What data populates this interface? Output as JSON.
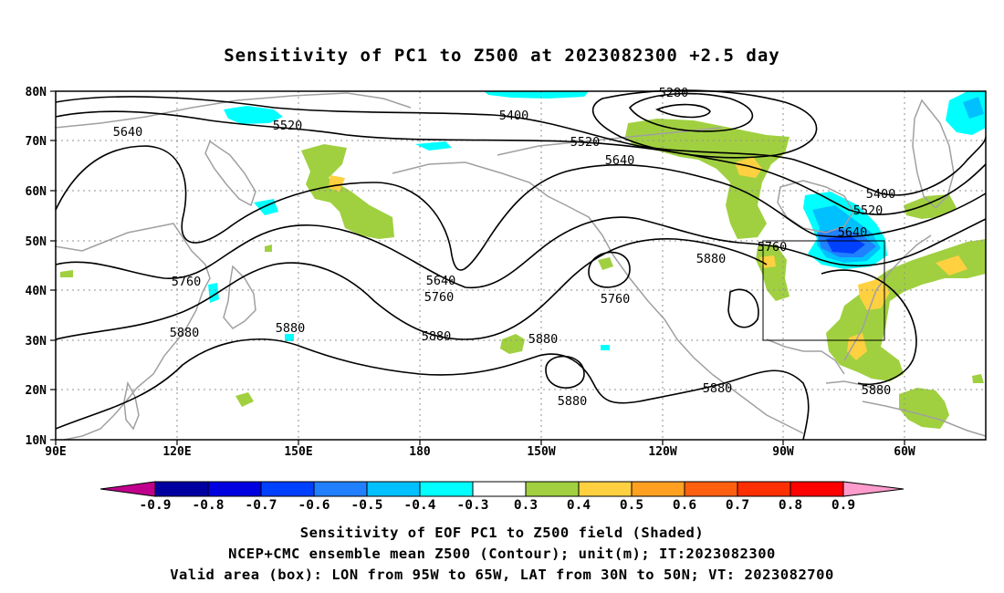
{
  "title": "Sensitivity of PC1 to Z500 at 2023082300 +2.5 day",
  "map": {
    "lon_ticks": [
      "90E",
      "120E",
      "150E",
      "180",
      "150W",
      "120W",
      "90W",
      "60W"
    ],
    "lat_ticks": [
      "80N",
      "70N",
      "60N",
      "50N",
      "40N",
      "30N",
      "20N",
      "10N"
    ],
    "contour_labels": [
      "5280",
      "5400",
      "5400",
      "5520",
      "5520",
      "5520",
      "5640",
      "5640",
      "5640",
      "5640",
      "5760",
      "5760",
      "5760",
      "5760",
      "5880",
      "5880",
      "5880",
      "5880",
      "5880",
      "5880",
      "5880",
      "5880"
    ],
    "valid_box": {
      "lon_west": "95W",
      "lon_east": "65W",
      "lat_south": "30N",
      "lat_north": "50N"
    },
    "contour_color": "#000000",
    "coastline_color": "#a0a0a0",
    "grid_style": "dotted"
  },
  "colorbar": {
    "labels": [
      "-0.9",
      "-0.8",
      "-0.7",
      "-0.6",
      "-0.5",
      "-0.4",
      "-0.3",
      "0.3",
      "0.4",
      "0.5",
      "0.6",
      "0.7",
      "0.8",
      "0.9"
    ],
    "colors": [
      "#c0008c",
      "#0000a0",
      "#0000e0",
      "#0040ff",
      "#2080ff",
      "#00c0ff",
      "#00ffff",
      "#ffffff",
      "#a0d040",
      "#ffd040",
      "#ffa020",
      "#ff6010",
      "#ff3000",
      "#ff0000",
      "#ff9ccc"
    ]
  },
  "footer": {
    "line1": "Sensitivity of EOF PC1 to Z500 field (Shaded)",
    "line2": "NCEP+CMC ensemble mean Z500 (Contour); unit(m); IT:2023082300",
    "line3": "Valid area (box): LON from 95W to 65W, LAT from 30N to 50N; VT: 2023082700"
  }
}
